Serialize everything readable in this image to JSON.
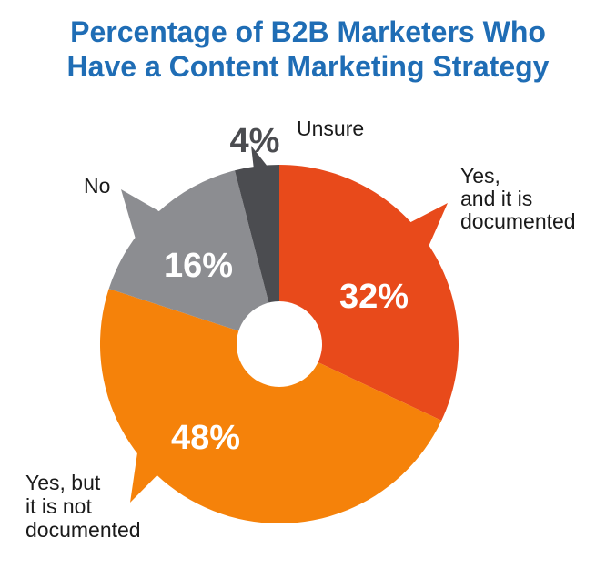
{
  "chart_data": {
    "type": "pie",
    "title_lines": [
      "Percentage of B2B Marketers Who",
      "Have a Content Marketing Strategy"
    ],
    "categories": [
      "Yes, and it is documented",
      "Yes, but it is not documented",
      "No",
      "Unsure"
    ],
    "values": [
      32,
      48,
      16,
      4
    ],
    "value_labels": [
      "32%",
      "48%",
      "16%",
      "4%"
    ],
    "category_label_lines": [
      [
        "Yes,",
        "and it is",
        "documented"
      ],
      [
        "Yes, but",
        "it is not",
        "documented"
      ],
      [
        "No"
      ],
      [
        "Unsure"
      ]
    ],
    "colors": [
      "#e84a1b",
      "#f5820a",
      "#8c8d91",
      "#4b4c50"
    ],
    "label_colors": [
      "#ffffff",
      "#ffffff",
      "#ffffff",
      "#4b4c50"
    ],
    "donut_hole": true
  }
}
